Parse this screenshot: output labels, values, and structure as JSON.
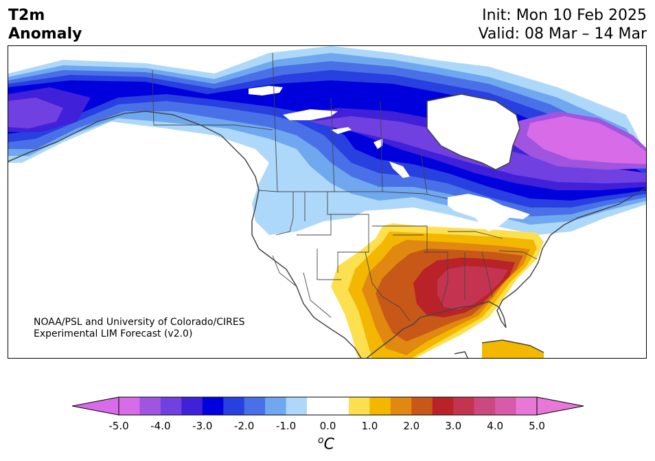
{
  "title": {
    "line1": "T2m",
    "line2": "Anomaly"
  },
  "forecast": {
    "init": "Init: Mon 10 Feb 2025",
    "valid": "Valid: 08 Mar – 14 Mar"
  },
  "credit": {
    "line1": "NOAA/PSL and University of Colorado/CIRES",
    "line2": "Experimental LIM Forecast (v2.0)"
  },
  "colorbar": {
    "units_symbol": "o",
    "units_letter": "C",
    "tick_labels": [
      "-5.0",
      "-4.0",
      "-3.0",
      "-2.0",
      "-1.0",
      "0.0",
      "1.0",
      "2.0",
      "3.0",
      "4.0",
      "5.0"
    ],
    "tick_values": [
      -5,
      -4,
      -3,
      -2,
      -1,
      0,
      1,
      2,
      3,
      4,
      5
    ],
    "range": [
      -5.0,
      5.0
    ],
    "level_step": 0.5,
    "extend": "both",
    "colors": [
      "#d86be8",
      "#a055e0",
      "#7040e0",
      "#4020d8",
      "#0000dc",
      "#2840e0",
      "#4a70e8",
      "#70a8f0",
      "#aed8fa",
      "#ffffff",
      "#ffffff",
      "#fde050",
      "#f3b700",
      "#e08810",
      "#c85818",
      "#b82228",
      "#c43450",
      "#cc4880",
      "#d85aa8",
      "#e878d8"
    ],
    "under_color": "#d86be8",
    "over_color": "#e878d8"
  }
}
